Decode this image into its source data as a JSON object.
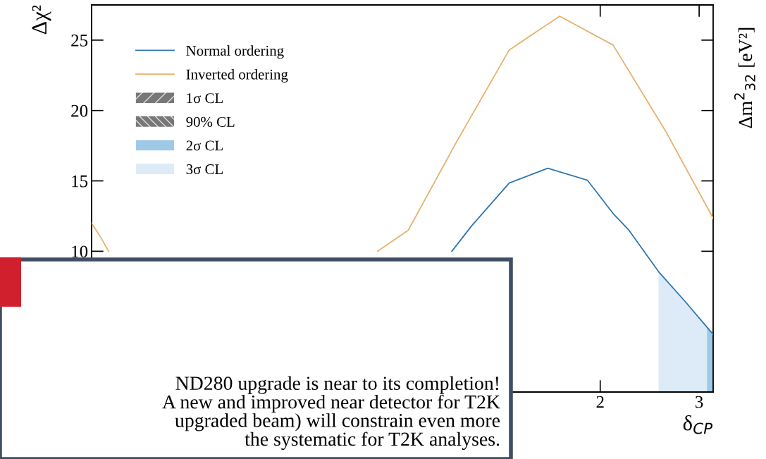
{
  "chart_data": {
    "type": "line",
    "xlabel": "δ$_{CP}$",
    "ylabel": "Δχ²",
    "xlim": [
      -3.1416,
      3.1416
    ],
    "ylim": [
      0,
      27.5
    ],
    "xticks": [
      2,
      3
    ],
    "yticks": [
      10,
      15,
      20,
      25
    ],
    "grid": false,
    "legend": "top left",
    "marker": "none",
    "line_style": "solid",
    "series": [
      {
        "name": "2σ CL",
        "type": "area",
        "color": "#9ecae8",
        "x": [
          3.08,
          3.1416
        ],
        "values": [
          4.6,
          4.1
        ]
      },
      {
        "name": "3σ CL",
        "type": "area",
        "color": "#dcebf7",
        "x": [
          2.59,
          2.85,
          3.08,
          3.1416
        ],
        "values": [
          8.55,
          6.5,
          4.6,
          4.1
        ]
      },
      {
        "name": "Normal ordering",
        "color": "#2f77b0",
        "x": [
          0.5,
          0.7,
          1.08,
          1.47,
          1.87,
          2.14,
          2.29,
          2.59,
          2.85,
          3.08,
          3.1416
        ],
        "values": [
          10.0,
          11.8,
          14.85,
          15.9,
          15.05,
          12.6,
          11.5,
          8.55,
          6.5,
          4.6,
          4.1
        ]
      },
      {
        "name": "Inverted ordering",
        "color": "#e8b06a",
        "x": [
          -3.1416,
          -3.05,
          -2.97,
          null,
          -0.25,
          0.06,
          0.55,
          1.08,
          1.59,
          2.13,
          2.66,
          3.1416
        ],
        "values": [
          12.0,
          11.0,
          10.0,
          null,
          10.0,
          11.5,
          17.8,
          24.3,
          26.7,
          24.65,
          18.55,
          12.35
        ]
      }
    ],
    "annotations": [
      "ND280 upgrade is near to its completion!\nA new and improved near detector for T2K\nupgraded beam) will constrain even more\nthe systematic for T2K analyses.",
      "Δm$^{2}$$_{32}$ [eV²]",
      "1σ CL",
      "90% CL"
    ]
  }
}
